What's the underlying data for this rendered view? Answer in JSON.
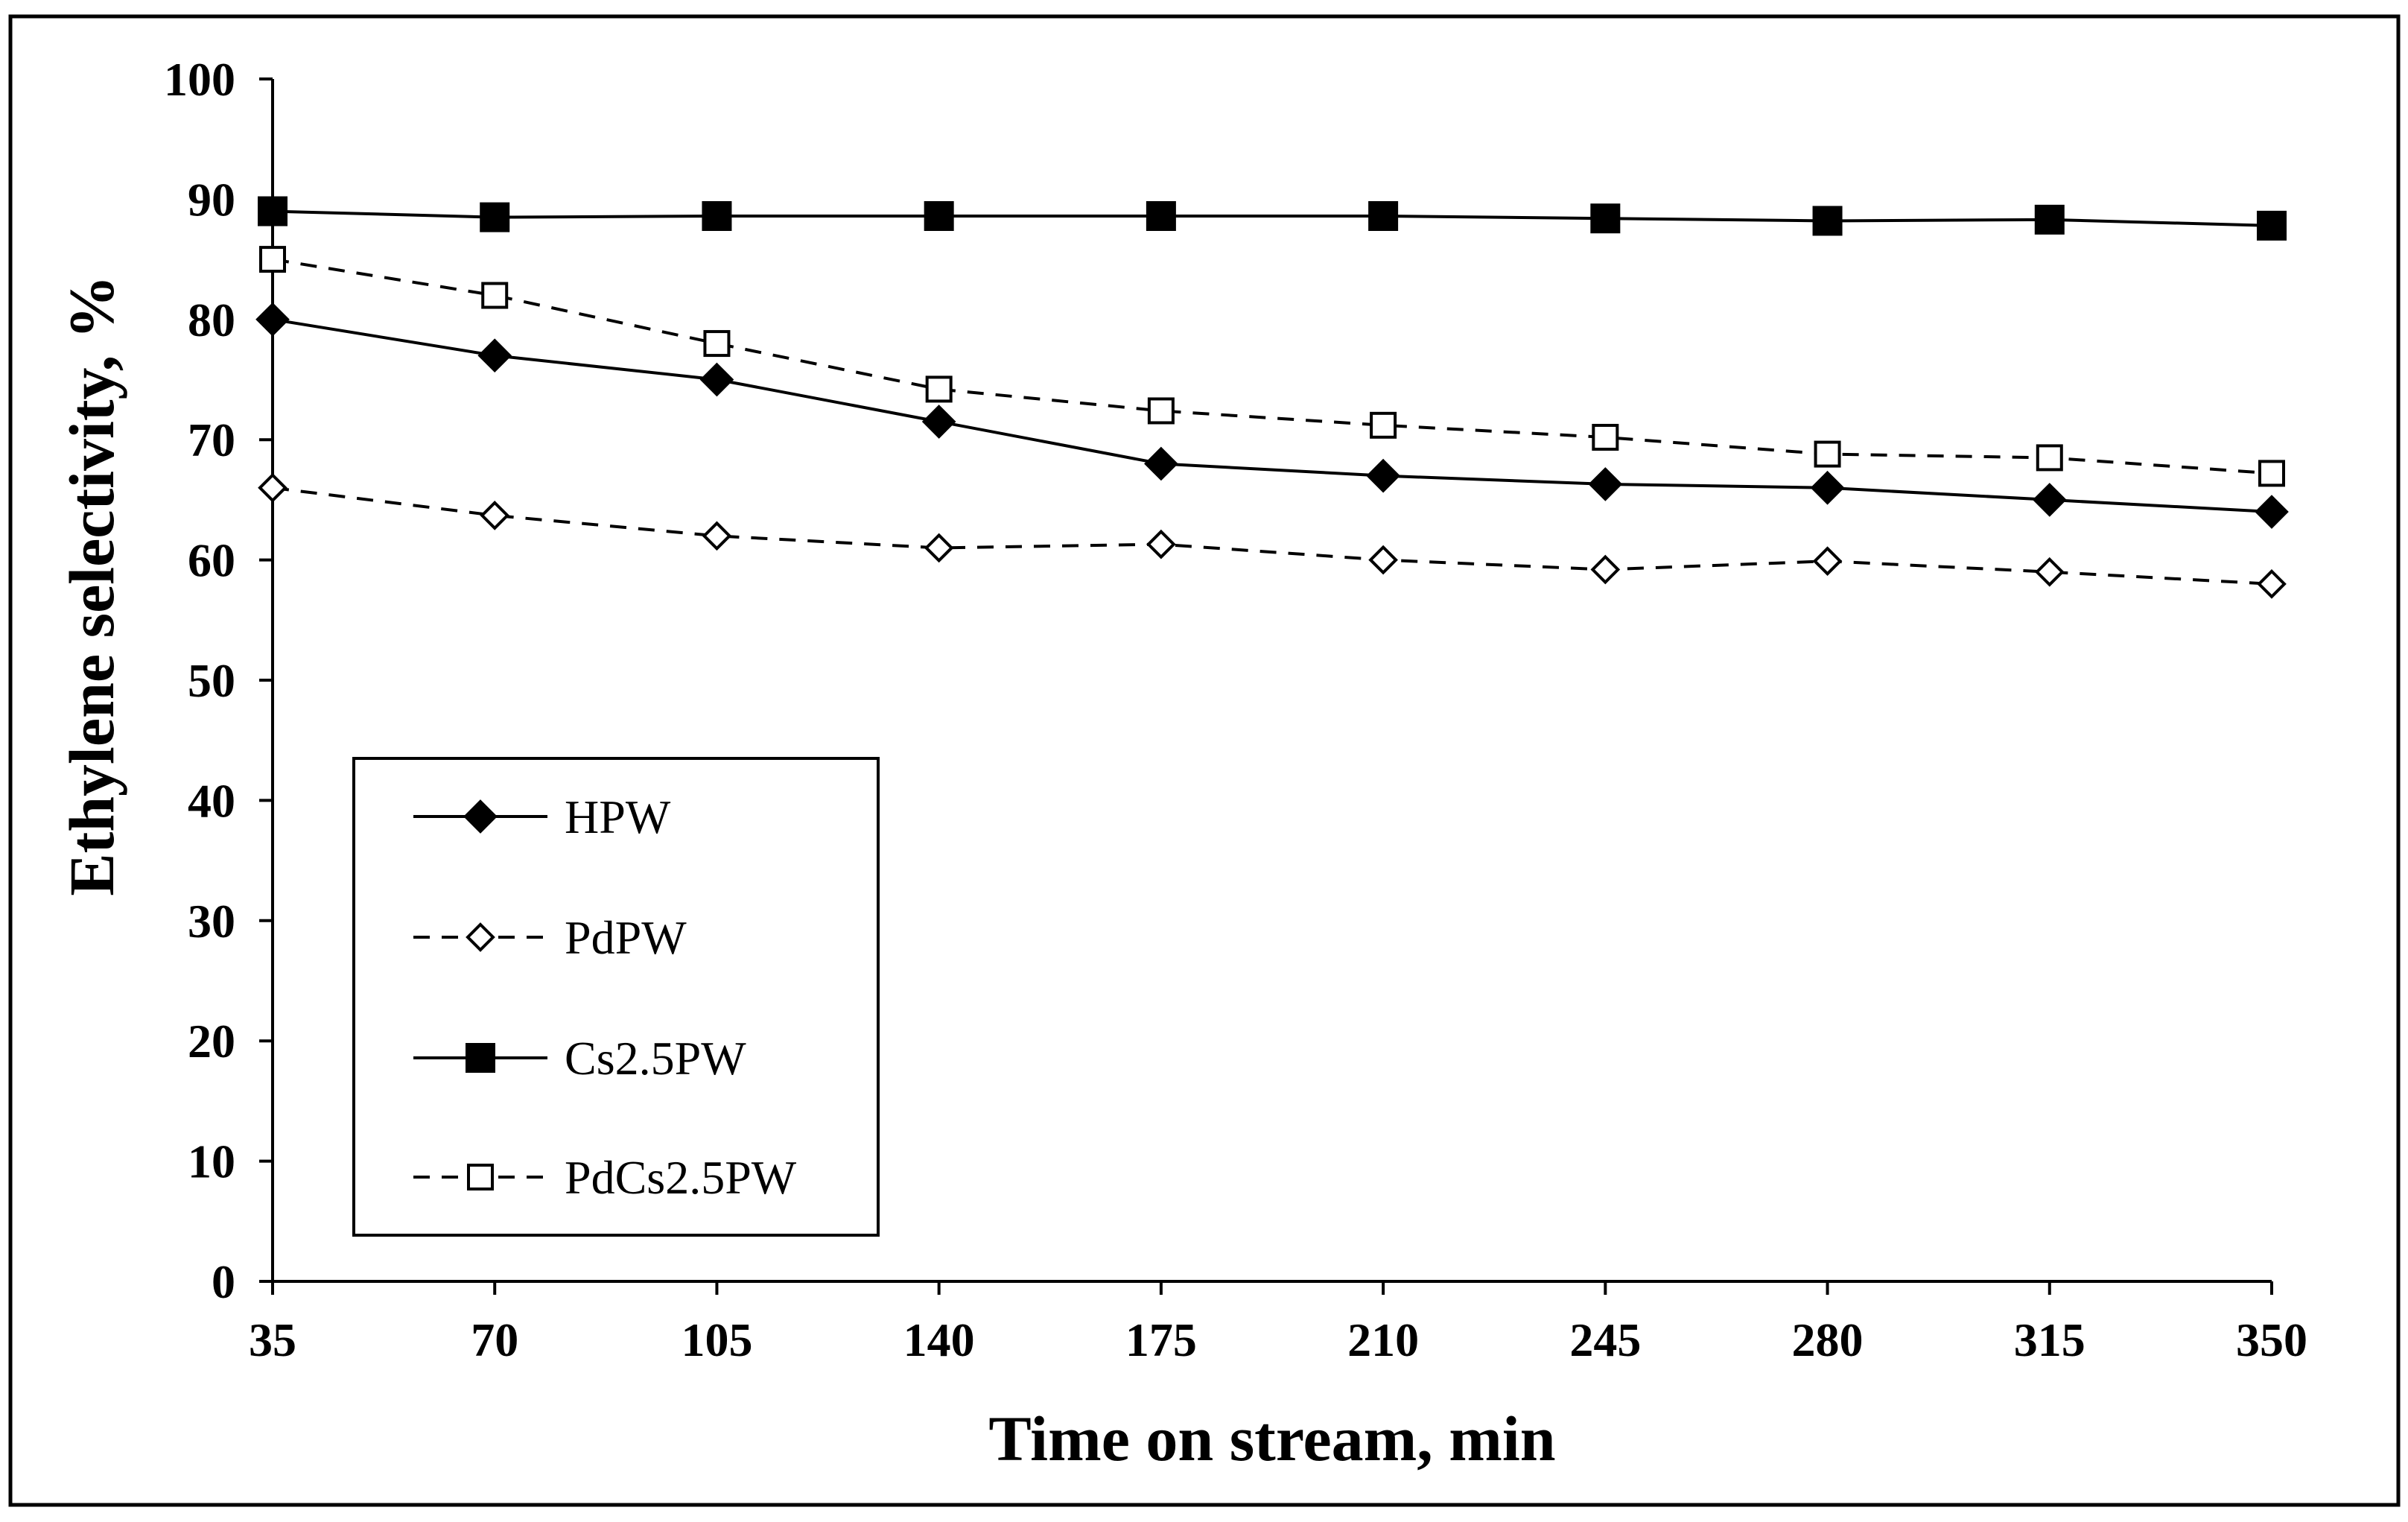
{
  "chart_data": {
    "type": "line",
    "title": "",
    "xlabel": "Time on stream, min",
    "ylabel": "Ethylene selectivity, %",
    "categories": [
      "35",
      "70",
      "105",
      "140",
      "175",
      "210",
      "245",
      "280",
      "315",
      "350"
    ],
    "ylim": [
      0,
      100
    ],
    "yticks": [
      "0",
      "10",
      "20",
      "30",
      "40",
      "50",
      "60",
      "70",
      "80",
      "90",
      "100"
    ],
    "grid": false,
    "legend_position": "bottom-left",
    "series": [
      {
        "name": "HPW",
        "line": "solid",
        "marker": "diamond",
        "filled": true,
        "values": [
          80,
          77,
          75,
          71.5,
          68,
          67,
          66.3,
          66,
          65,
          64
        ]
      },
      {
        "name": "PdPW",
        "line": "dashed",
        "marker": "diamond",
        "filled": false,
        "values": [
          66,
          63.7,
          62,
          61,
          61.3,
          60,
          59.2,
          59.9,
          59,
          58
        ]
      },
      {
        "name": "Cs2.5PW",
        "line": "solid",
        "marker": "square",
        "filled": true,
        "values": [
          89,
          88.5,
          88.6,
          88.6,
          88.6,
          88.6,
          88.4,
          88.2,
          88.3,
          87.8
        ]
      },
      {
        "name": "PdCs2.5PW",
        "line": "dashed",
        "marker": "square",
        "filled": false,
        "values": [
          85,
          82,
          78,
          74.2,
          72.4,
          71.2,
          70.2,
          68.8,
          68.5,
          67.2
        ]
      }
    ]
  }
}
